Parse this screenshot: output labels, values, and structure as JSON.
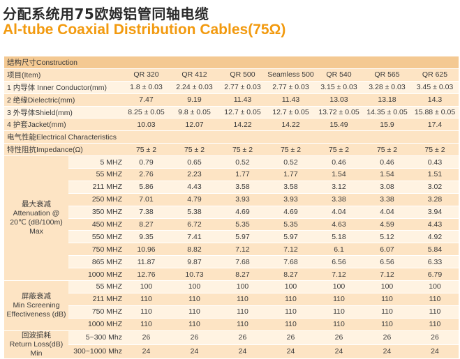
{
  "title_cn": "分配系统用75欧姆铝管同轴电缆",
  "title_en": "Al-tube Coaxial Distribution Cables(75Ω)",
  "construction": {
    "header": "结构尺寸Construction",
    "item_label": "项目(Item)",
    "models": [
      "QR 320",
      "QR 412",
      "QR 500",
      "Seamless  500",
      "QR 540",
      "QR 565",
      "QR 625"
    ],
    "rows": [
      {
        "label": "1 内导体 Inner Conductor(mm)",
        "values": [
          "1.8 ± 0.03",
          "2.24 ± 0.03",
          "2.77 ± 0.03",
          "2.77 ± 0.03",
          "3.15 ± 0.03",
          "3.28 ± 0.03",
          "3.45 ± 0.03"
        ]
      },
      {
        "label": "2 绝缘Dielectric(mm)",
        "values": [
          "7.47",
          "9.19",
          "11.43",
          "11.43",
          "13.03",
          "13.18",
          "14.3"
        ]
      },
      {
        "label": "3 外导体Shield(mm)",
        "values": [
          "8.25 ± 0.05",
          "9.8 ± 0.05",
          "12.7 ± 0.05",
          "12.7 ± 0.05",
          "13.72 ± 0.05",
          "14.35 ± 0.05",
          "15.88 ± 0.05"
        ]
      },
      {
        "label": "4 护套Jacket(mm)",
        "values": [
          "10.03",
          "12.07",
          "14.22",
          "14.22",
          "15.49",
          "15.9",
          "17.4"
        ]
      }
    ]
  },
  "electrical": {
    "header": "电气性能Electrical Characteristics",
    "impedance": {
      "label": "特性阻抗Impedance(Ω)",
      "values": [
        "75 ± 2",
        "75 ± 2",
        "75 ± 2",
        "75 ± 2",
        "75 ± 2",
        "75 ± 2",
        "75 ± 2"
      ]
    },
    "attenuation": {
      "label_cn": "最大衰减",
      "label_en": "Attenuation @ 20℃ (dB/100m) Max",
      "rows": [
        {
          "freq": "5 MHZ",
          "values": [
            "0.79",
            "0.65",
            "0.52",
            "0.52",
            "0.46",
            "0.46",
            "0.43"
          ]
        },
        {
          "freq": "55 MHZ",
          "values": [
            "2.76",
            "2.23",
            "1.77",
            "1.77",
            "1.54",
            "1.54",
            "1.51"
          ]
        },
        {
          "freq": "211 MHZ",
          "values": [
            "5.86",
            "4.43",
            "3.58",
            "3.58",
            "3.12",
            "3.08",
            "3.02"
          ]
        },
        {
          "freq": "250 MHZ",
          "values": [
            "7.01",
            "4.79",
            "3.93",
            "3.93",
            "3.38",
            "3.38",
            "3.28"
          ]
        },
        {
          "freq": "350 MHZ",
          "values": [
            "7.38",
            "5.38",
            "4.69",
            "4.69",
            "4.04",
            "4.04",
            "3.94"
          ]
        },
        {
          "freq": "450 MHZ",
          "values": [
            "8.27",
            "6.72",
            "5.35",
            "5.35",
            "4.63",
            "4.59",
            "4.43"
          ]
        },
        {
          "freq": "550 MHZ",
          "values": [
            "9.35",
            "7.41",
            "5.97",
            "5.97",
            "5.18",
            "5.12",
            "4.92"
          ]
        },
        {
          "freq": "750 MHZ",
          "values": [
            "10.96",
            "8.82",
            "7.12",
            "7.12",
            "6.1",
            "6.07",
            "5.84"
          ]
        },
        {
          "freq": "865 MHZ",
          "values": [
            "11.87",
            "9.87",
            "7.68",
            "7.68",
            "6.56",
            "6.56",
            "6.33"
          ]
        },
        {
          "freq": "1000 MHZ",
          "values": [
            "12.76",
            "10.73",
            "8.27",
            "8.27",
            "7.12",
            "7.12",
            "6.79"
          ]
        }
      ]
    },
    "screening": {
      "label_cn": "屏蔽衰减",
      "label_en": "Min Screening Effectiveness (dB)",
      "rows": [
        {
          "freq": "55 MHZ",
          "values": [
            "100",
            "100",
            "100",
            "100",
            "100",
            "100",
            "100"
          ]
        },
        {
          "freq": "211 MHZ",
          "values": [
            "110",
            "110",
            "110",
            "110",
            "110",
            "110",
            "110"
          ]
        },
        {
          "freq": "750 MHZ",
          "values": [
            "110",
            "110",
            "110",
            "110",
            "110",
            "110",
            "110"
          ]
        },
        {
          "freq": "1000 MHZ",
          "values": [
            "110",
            "110",
            "110",
            "110",
            "110",
            "110",
            "110"
          ]
        }
      ]
    },
    "return_loss": {
      "label_cn": "回波损耗",
      "label_en": "Return Loss(dB) Min",
      "rows": [
        {
          "freq": "5~300 Mhz",
          "values": [
            "26",
            "26",
            "26",
            "26",
            "26",
            "26",
            "26"
          ]
        },
        {
          "freq": "300~1000 Mhz",
          "values": [
            "24",
            "24",
            "24",
            "24",
            "24",
            "24",
            "24"
          ]
        }
      ]
    }
  }
}
